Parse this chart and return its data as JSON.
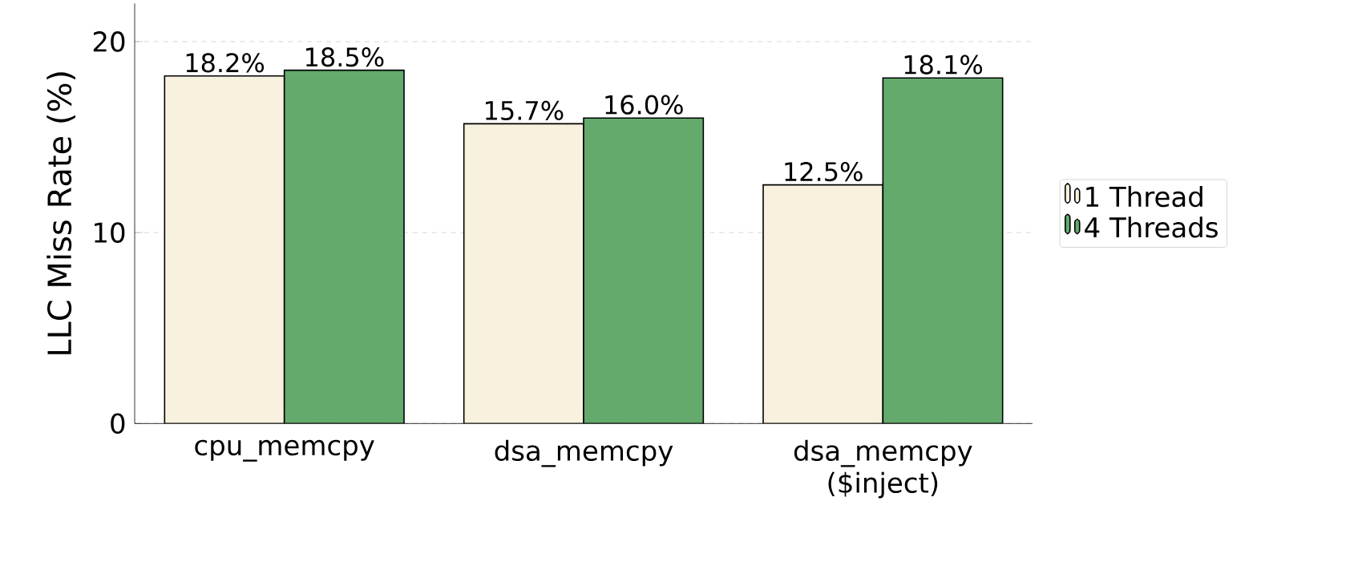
{
  "chart_data": {
    "type": "bar",
    "ylabel": "LLC Miss Rate (%)",
    "categories": [
      "cpu_memcpy",
      "dsa_memcpy",
      "dsa_memcpy ($inject)"
    ],
    "series": [
      {
        "name": "1 Thread",
        "color": "#f8f1de",
        "values": [
          18.2,
          15.7,
          12.5
        ],
        "value_labels": [
          "18.2%",
          "15.7%",
          "12.5%"
        ]
      },
      {
        "name": "4 Threads",
        "color": "#63aa6c",
        "values": [
          18.5,
          16.0,
          18.1
        ],
        "value_labels": [
          "18.5%",
          "16.0%",
          "18.1%"
        ]
      }
    ],
    "ylim": [
      0,
      22
    ],
    "yticks": [
      0,
      10,
      20
    ],
    "grid": "y",
    "legend": "right"
  }
}
